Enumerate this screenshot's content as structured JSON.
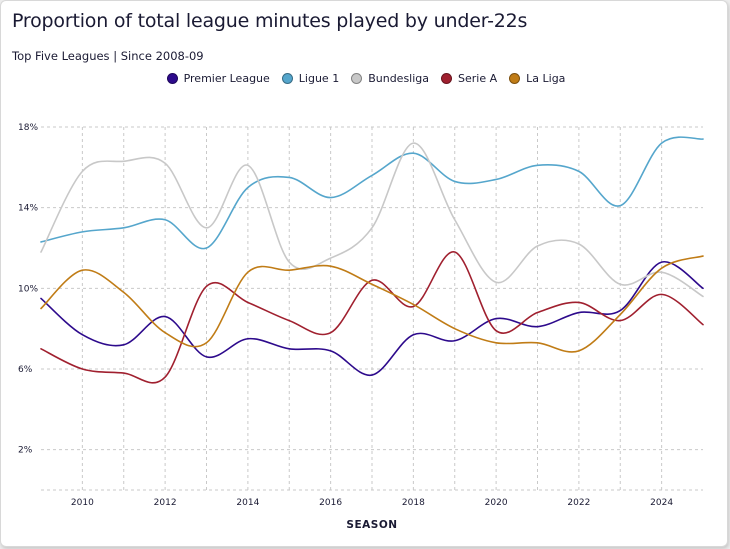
{
  "chart_data": {
    "type": "line",
    "title": "Proportion of total league minutes played by under-22s",
    "subtitle": "Top Five Leagues | Since 2008-09",
    "xlabel": "SEASON",
    "ylabel": "",
    "xlim": [
      2009,
      2025
    ],
    "ylim": [
      0,
      18
    ],
    "x_ticks": [
      2010,
      2012,
      2014,
      2016,
      2018,
      2020,
      2022,
      2024
    ],
    "x_tick_labels": [
      "2010",
      "2012",
      "2014",
      "2016",
      "2018",
      "2020",
      "2022",
      "2024"
    ],
    "y_ticks": [
      2,
      6,
      10,
      14,
      18
    ],
    "y_tick_labels": [
      "2%",
      "6%",
      "10%",
      "14%",
      "18%"
    ],
    "grid": true,
    "legend_position": "top-center",
    "x": [
      2009,
      2010,
      2011,
      2012,
      2013,
      2014,
      2015,
      2016,
      2017,
      2018,
      2019,
      2020,
      2021,
      2022,
      2023,
      2024,
      2025
    ],
    "series": [
      {
        "name": "Premier League",
        "color": "#2d0a8c",
        "values": [
          9.5,
          7.7,
          7.2,
          8.6,
          6.6,
          7.5,
          7.0,
          6.9,
          5.7,
          7.7,
          7.4,
          8.5,
          8.1,
          8.8,
          8.9,
          11.3,
          10.0
        ]
      },
      {
        "name": "Ligue 1",
        "color": "#55a6cc",
        "values": [
          12.3,
          12.8,
          13.0,
          13.4,
          12.0,
          15.0,
          15.5,
          14.5,
          15.6,
          16.7,
          15.3,
          15.4,
          16.1,
          15.8,
          14.1,
          17.2,
          17.4
        ]
      },
      {
        "name": "Bundesliga",
        "color": "#c8c8c8",
        "values": [
          11.8,
          15.8,
          16.3,
          16.2,
          13.0,
          16.1,
          11.3,
          11.5,
          13.0,
          17.2,
          13.4,
          10.3,
          12.1,
          12.2,
          10.2,
          10.8,
          9.6
        ]
      },
      {
        "name": "Serie A",
        "color": "#a0202f",
        "values": [
          7.0,
          6.0,
          5.8,
          5.6,
          10.1,
          9.3,
          8.4,
          7.8,
          10.4,
          9.1,
          11.8,
          7.9,
          8.8,
          9.3,
          8.4,
          9.7,
          8.2
        ]
      },
      {
        "name": "La Liga",
        "color": "#c07c16",
        "values": [
          9.0,
          10.9,
          9.8,
          7.8,
          7.3,
          10.8,
          10.9,
          11.1,
          10.2,
          9.2,
          8.0,
          7.3,
          7.3,
          6.9,
          8.7,
          11.0,
          11.6
        ]
      }
    ]
  }
}
